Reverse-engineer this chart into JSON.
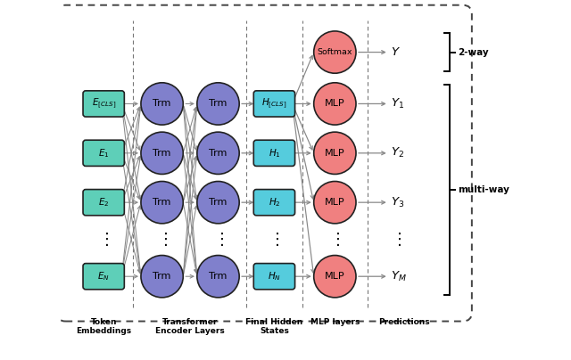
{
  "fig_width": 6.4,
  "fig_height": 4.04,
  "dpi": 100,
  "bg_color": "#ffffff",
  "border_color": "#444444",
  "embed_color": "#5ecfb8",
  "trm_color": "#8080cc",
  "hidden_color": "#55ccdd",
  "mlp_color": "#f08080",
  "softmax_color": "#f08080",
  "arrow_color": "#888888",
  "text_color": "#000000",
  "col_labels": [
    "Token\nEmbeddings",
    "Transformer\nEncoder Layers",
    "Final Hidden\nStates",
    "MLP layers",
    "Predictions"
  ],
  "label_2way": "2-way",
  "label_multiway": "multi-way"
}
